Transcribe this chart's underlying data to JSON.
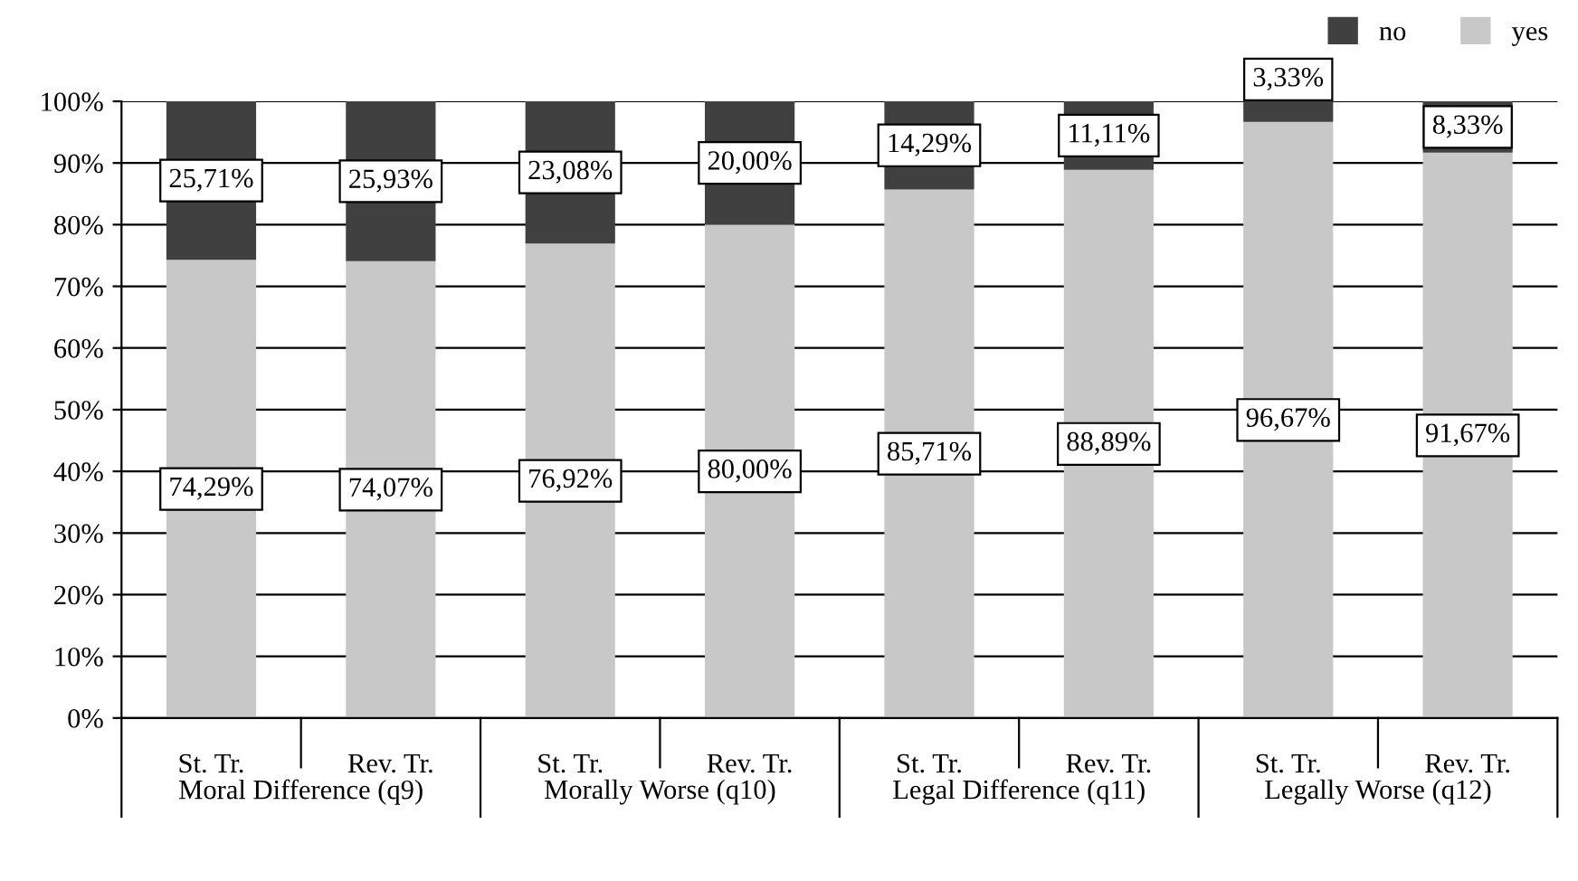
{
  "chart_data": {
    "type": "bar",
    "stacked": true,
    "categories": [
      "St. Tr.",
      "Rev. Tr.",
      "St. Tr.",
      "Rev. Tr.",
      "St. Tr.",
      "Rev. Tr.",
      "St. Tr.",
      "Rev. Tr."
    ],
    "series": [
      {
        "name": "yes",
        "color": "#c8c8c8",
        "values": [
          74.29,
          74.07,
          76.92,
          80.0,
          85.71,
          88.89,
          96.67,
          91.67
        ],
        "value_labels": [
          "74,29%",
          "74,07%",
          "76,92%",
          "80,00%",
          "85,71%",
          "88,89%",
          "96,67%",
          "91,67%"
        ]
      },
      {
        "name": "no",
        "color": "#404040",
        "values": [
          25.71,
          25.93,
          23.08,
          20.0,
          14.29,
          11.11,
          3.33,
          8.33
        ],
        "value_labels": [
          "25,71%",
          "25,93%",
          "23,08%",
          "20,00%",
          "14,29%",
          "11,11%",
          "3,33%",
          "8,33%"
        ]
      }
    ],
    "annotations": [
      "Moral Difference (q9)",
      "Morally Worse (q10)",
      "Legal Difference (q11)",
      "Legally Worse (q12)"
    ],
    "ylim": [
      0,
      100
    ],
    "yticks": [
      {
        "value": 0,
        "label": "0%"
      },
      {
        "value": 10,
        "label": "10%"
      },
      {
        "value": 20,
        "label": "20%"
      },
      {
        "value": 30,
        "label": "30%"
      },
      {
        "value": 40,
        "label": "40%"
      },
      {
        "value": 50,
        "label": "50%"
      },
      {
        "value": 60,
        "label": "60%"
      },
      {
        "value": 70,
        "label": "70%"
      },
      {
        "value": 80,
        "label": "80%"
      },
      {
        "value": 90,
        "label": "90%"
      },
      {
        "value": 100,
        "label": "100%"
      }
    ],
    "grid": "y",
    "legend": "top right"
  }
}
